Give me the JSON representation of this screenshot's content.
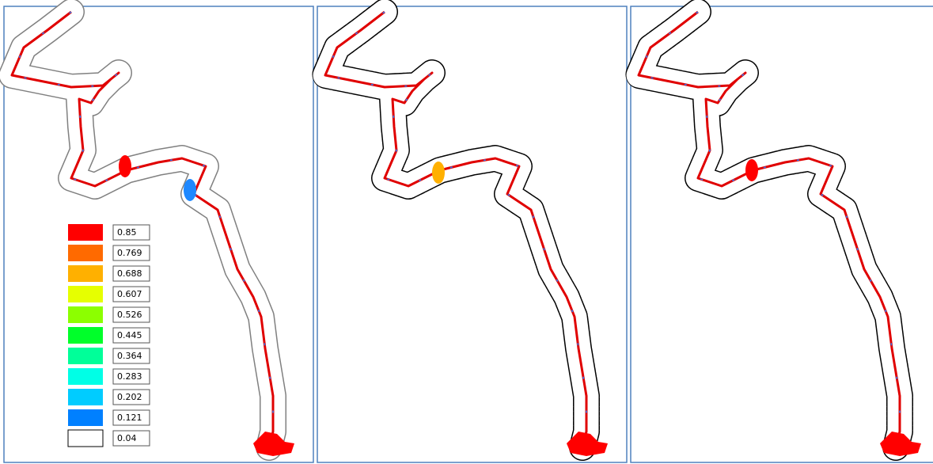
{
  "legend": [
    {
      "color": "#ff0000",
      "label": "0.85"
    },
    {
      "color": "#ff6a00",
      "label": "0.769"
    },
    {
      "color": "#ffb000",
      "label": "0.688"
    },
    {
      "color": "#e6ff00",
      "label": "0.607"
    },
    {
      "color": "#8cff00",
      "label": "0.526"
    },
    {
      "color": "#00ff2a",
      "label": "0.445"
    },
    {
      "color": "#00ff99",
      "label": "0.364"
    },
    {
      "color": "#00ffe6",
      "label": "0.283"
    },
    {
      "color": "#00ccff",
      "label": "0.202"
    },
    {
      "color": "#0080ff",
      "label": "0.121"
    },
    {
      "color": "#ffffff",
      "label": "0.04"
    }
  ]
}
